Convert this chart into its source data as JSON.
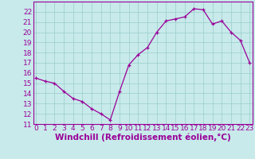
{
  "x": [
    0,
    1,
    2,
    3,
    4,
    5,
    6,
    7,
    8,
    9,
    10,
    11,
    12,
    13,
    14,
    15,
    16,
    17,
    18,
    19,
    20,
    21,
    22,
    23
  ],
  "y": [
    15.5,
    15.2,
    15.0,
    14.2,
    13.5,
    13.2,
    12.5,
    12.0,
    11.4,
    14.2,
    16.8,
    17.8,
    18.5,
    20.0,
    21.1,
    21.3,
    21.5,
    22.3,
    22.2,
    20.8,
    21.1,
    20.0,
    19.2,
    17.0
  ],
  "line_color": "#990099",
  "marker": "+",
  "bg_color": "#c8eaea",
  "grid_color": "#99cccc",
  "xlabel": "Windchill (Refroidissement éolien,°C)",
  "xlabel_color": "#990099",
  "tick_color": "#990099",
  "ylim": [
    11,
    23
  ],
  "yticks": [
    11,
    12,
    13,
    14,
    15,
    16,
    17,
    18,
    19,
    20,
    21,
    22
  ],
  "xticks": [
    0,
    1,
    2,
    3,
    4,
    5,
    6,
    7,
    8,
    9,
    10,
    11,
    12,
    13,
    14,
    15,
    16,
    17,
    18,
    19,
    20,
    21,
    22,
    23
  ],
  "xtick_labels": [
    "0",
    "1",
    "2",
    "3",
    "4",
    "5",
    "6",
    "7",
    "8",
    "9",
    "10",
    "11",
    "12",
    "13",
    "14",
    "15",
    "16",
    "17",
    "18",
    "19",
    "20",
    "21",
    "22",
    "23"
  ],
  "spine_color": "#990099",
  "tick_font_size": 6.5,
  "xlabel_font_size": 7.5
}
